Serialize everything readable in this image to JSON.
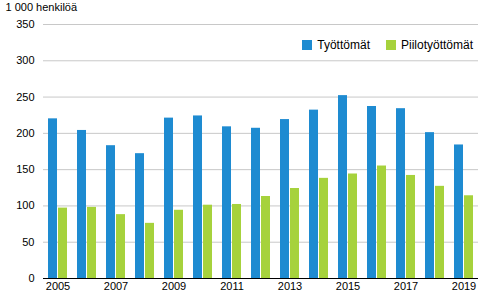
{
  "chart_data": {
    "type": "bar",
    "y_label": "1 000 henkilöä",
    "categories": [
      "2005",
      null,
      "2007",
      null,
      "2009",
      null,
      "2011",
      null,
      "2013",
      null,
      "2015",
      null,
      "2017",
      null,
      "2019"
    ],
    "series": [
      {
        "name": "Työttömät",
        "color": "#1e8bd1",
        "values": [
          220,
          204,
          183,
          172,
          221,
          224,
          209,
          207,
          219,
          232,
          252,
          237,
          234,
          201,
          184
        ]
      },
      {
        "name": "Piilotyöttömät",
        "color": "#a6d23c",
        "values": [
          97,
          98,
          88,
          76,
          94,
          101,
          102,
          113,
          124,
          138,
          144,
          155,
          142,
          127,
          114
        ]
      }
    ],
    "ylim": [
      0,
      350
    ],
    "yticks": [
      0,
      50,
      100,
      150,
      200,
      250,
      300,
      350
    ],
    "grid": true,
    "legend": "top-right"
  }
}
